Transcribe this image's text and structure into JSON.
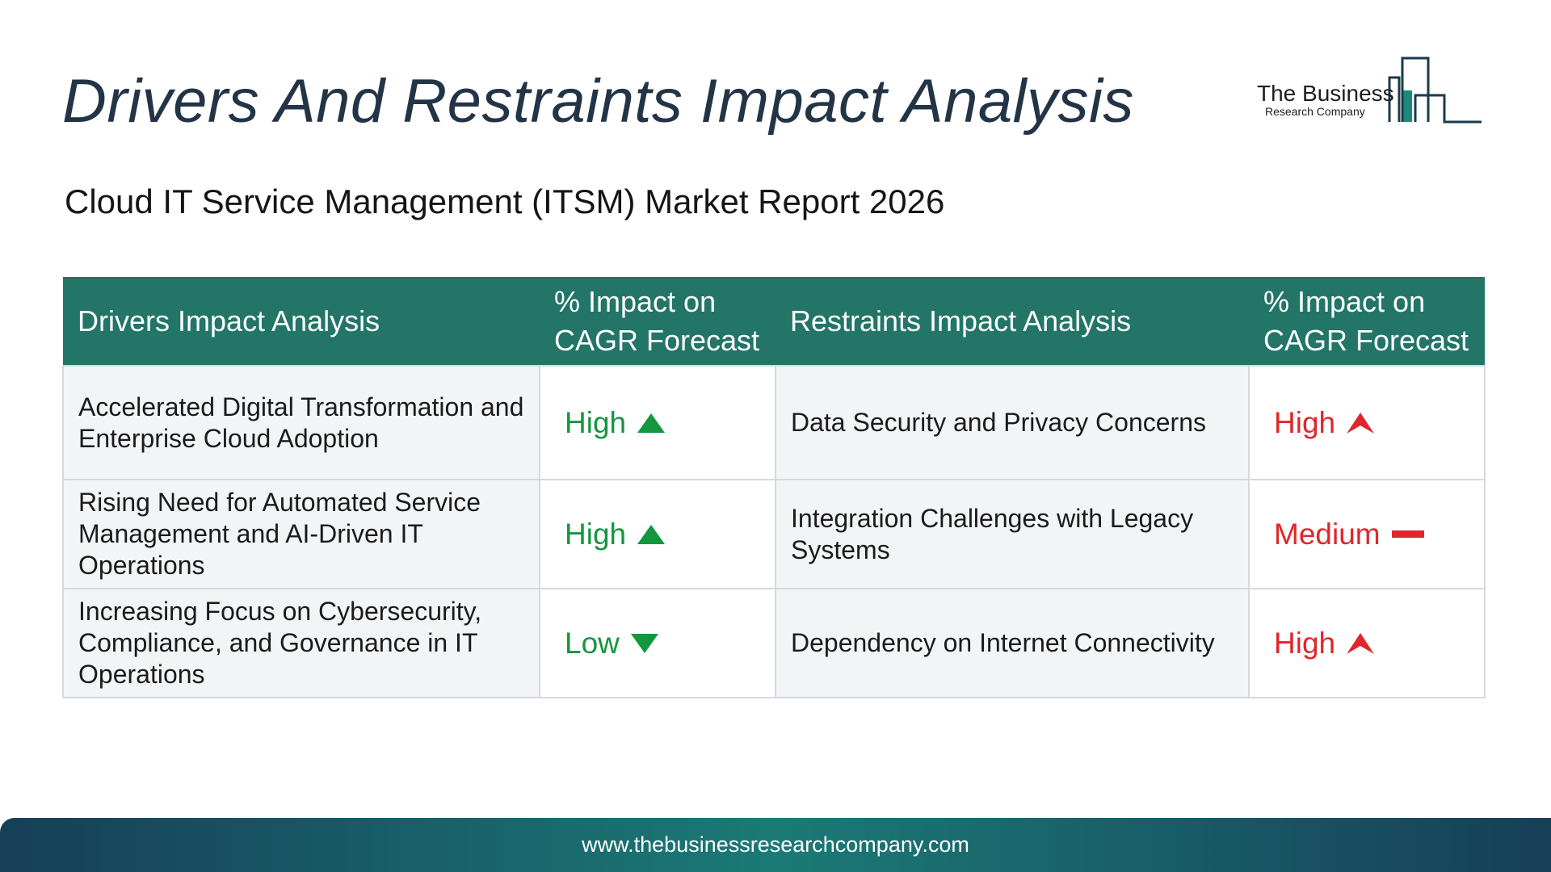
{
  "header": {
    "title": "Drivers And Restraints Impact Analysis",
    "subtitle": "Cloud IT Service Management (ITSM) Market Report 2026"
  },
  "logo": {
    "name": "The Business",
    "sub": "Research Company",
    "accent_color": "#1b8a7a"
  },
  "table": {
    "headers": {
      "drivers": "Drivers Impact Analysis",
      "drivers_impact": "% Impact on CAGR Forecast",
      "restraints": "Restraints Impact Analysis",
      "restraints_impact": "% Impact on CAGR Forecast"
    },
    "rows": [
      {
        "driver": "Accelerated Digital Transformation and Enterprise Cloud Adoption",
        "driver_impact": "High",
        "driver_icon": "arrow-up-icon",
        "restraint": "Data Security and Privacy Concerns",
        "restraint_impact": "High",
        "restraint_icon": "arrow-up-icon"
      },
      {
        "driver": "Rising Need for Automated Service Management and AI-Driven IT Operations",
        "driver_impact": "High",
        "driver_icon": "arrow-up-icon",
        "restraint": "Integration Challenges with Legacy Systems",
        "restraint_impact": "Medium",
        "restraint_icon": "dash-icon"
      },
      {
        "driver": "Increasing Focus on Cybersecurity, Compliance, and Governance in IT Operations",
        "driver_impact": "Low",
        "driver_icon": "arrow-down-icon",
        "restraint": "Dependency on Internet Connectivity",
        "restraint_impact": "High",
        "restraint_icon": "arrow-up-icon"
      }
    ],
    "colors": {
      "header_bg": "#227567",
      "driver_impact": "#14963f",
      "restraint_impact": "#e0262b"
    }
  },
  "footer": {
    "url": "www.thebusinessresearchcompany.com"
  }
}
